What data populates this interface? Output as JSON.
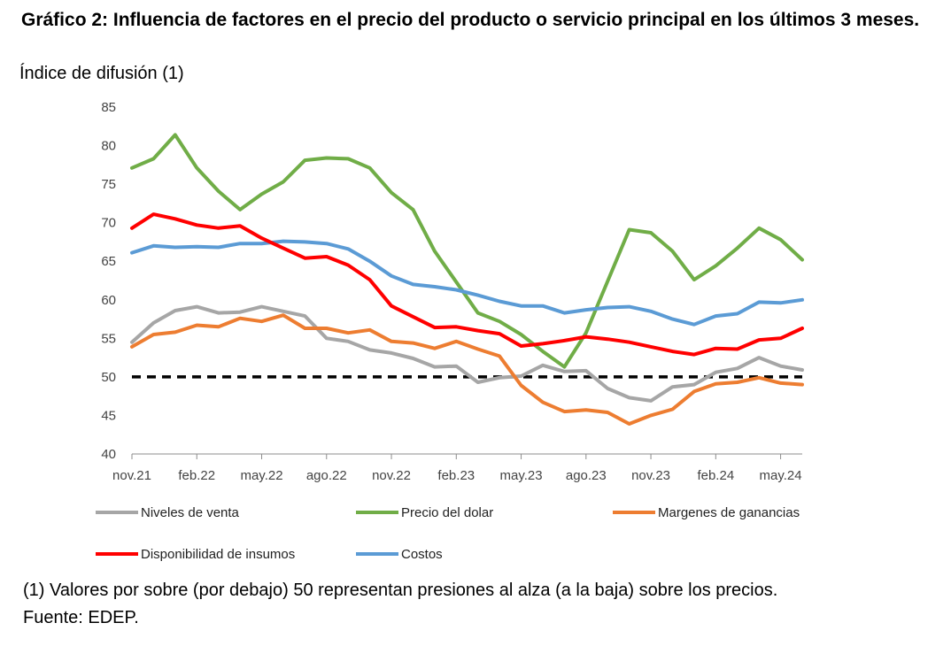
{
  "title": "Gráfico 2: Influencia de factores en el precio del producto o servicio principal en los últimos 3 meses.",
  "ylabel": "Índice de difusión (1)",
  "footnote": "(1) Valores por sobre (por debajo) 50 representan presiones al alza (a la baja) sobre los precios.",
  "source": "Fuente: EDEP.",
  "chart_data": {
    "type": "line",
    "ylim": [
      40,
      85
    ],
    "yticks": [
      40,
      45,
      50,
      55,
      60,
      65,
      70,
      75,
      80,
      85
    ],
    "x": [
      "nov.21",
      "dic.21",
      "ene.22",
      "feb.22",
      "mar.22",
      "abr.22",
      "may.22",
      "jun.22",
      "jul.22",
      "ago.22",
      "sep.22",
      "oct.22",
      "nov.22",
      "dic.22",
      "ene.23",
      "feb.23",
      "mar.23",
      "abr.23",
      "may.23",
      "jun.23",
      "jul.23",
      "ago.23",
      "sep.23",
      "oct.23",
      "nov.23",
      "dic.23",
      "ene.24",
      "feb.24",
      "mar.24",
      "abr.24",
      "may.24",
      "jun.24"
    ],
    "xtick_labels": [
      "nov.21",
      "feb.22",
      "may.22",
      "ago.22",
      "nov.22",
      "feb.23",
      "may.23",
      "ago.23",
      "nov.23",
      "feb.24",
      "may.24"
    ],
    "xtick_step": 3,
    "reference_line": {
      "value": 50,
      "style": "dashed",
      "color": "#000000"
    },
    "series": [
      {
        "name": "Niveles de venta",
        "color": "#A6A6A6",
        "values": [
          54.5,
          57.0,
          58.6,
          59.1,
          58.3,
          58.4,
          59.1,
          58.5,
          57.9,
          55.0,
          54.6,
          53.5,
          53.1,
          52.4,
          51.3,
          51.4,
          49.3,
          49.9,
          50.1,
          51.5,
          50.7,
          50.8,
          48.5,
          47.3,
          46.9,
          48.7,
          49.0,
          50.6,
          51.1,
          52.5,
          51.4,
          50.9
        ]
      },
      {
        "name": "Precio del dolar",
        "color": "#70AD47",
        "values": [
          77.1,
          78.3,
          81.4,
          77.1,
          74.1,
          71.7,
          73.7,
          75.3,
          78.1,
          78.4,
          78.3,
          77.1,
          73.9,
          71.7,
          66.3,
          62.3,
          58.3,
          57.2,
          55.5,
          53.3,
          51.3,
          55.7,
          62.4,
          69.1,
          68.7,
          66.3,
          62.6,
          64.4,
          66.7,
          69.3,
          67.8,
          65.2
        ]
      },
      {
        "name": "Margenes de ganancias",
        "color": "#ED7D31",
        "values": [
          53.9,
          55.5,
          55.8,
          56.7,
          56.5,
          57.6,
          57.2,
          58.0,
          56.3,
          56.3,
          55.7,
          56.1,
          54.6,
          54.4,
          53.7,
          54.6,
          53.6,
          52.7,
          48.9,
          46.7,
          45.5,
          45.7,
          45.4,
          43.9,
          45.0,
          45.8,
          48.1,
          49.1,
          49.3,
          49.9,
          49.2,
          49.0
        ]
      },
      {
        "name": "Disponibilidad de insumos",
        "color": "#FF0000",
        "values": [
          69.3,
          71.1,
          70.5,
          69.7,
          69.3,
          69.6,
          68.0,
          66.7,
          65.4,
          65.6,
          64.5,
          62.6,
          59.2,
          57.8,
          56.4,
          56.5,
          56.0,
          55.6,
          54.0,
          54.3,
          54.7,
          55.2,
          54.9,
          54.5,
          53.9,
          53.3,
          52.9,
          53.7,
          53.6,
          54.8,
          55.0,
          56.3
        ]
      },
      {
        "name": "Costos",
        "color": "#5B9BD5",
        "values": [
          66.1,
          67.0,
          66.8,
          66.9,
          66.8,
          67.3,
          67.3,
          67.6,
          67.5,
          67.3,
          66.6,
          65.0,
          63.1,
          62.0,
          61.7,
          61.3,
          60.6,
          59.8,
          59.2,
          59.2,
          58.3,
          58.7,
          59.0,
          59.1,
          58.5,
          57.5,
          56.8,
          57.9,
          58.2,
          59.7,
          59.6,
          60.0
        ]
      }
    ]
  }
}
